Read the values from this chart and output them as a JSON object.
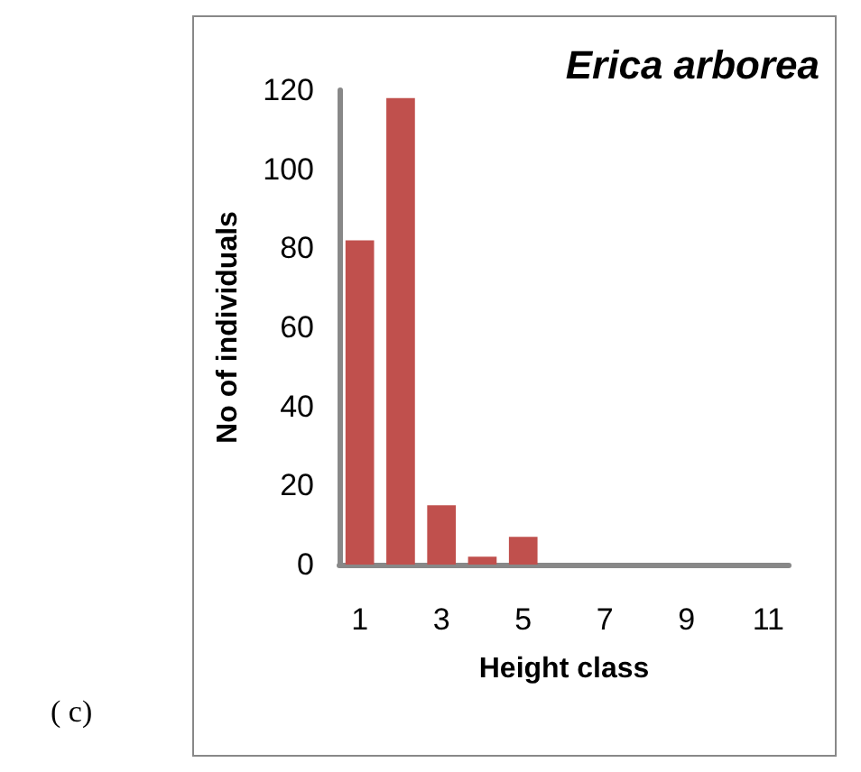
{
  "chart_data": {
    "type": "bar",
    "title": "Erica arborea",
    "xlabel": "Height class",
    "ylabel": "No of individuals",
    "categories": [
      "1",
      null,
      "3",
      null,
      "5",
      null,
      "7",
      null,
      "9",
      null,
      "11"
    ],
    "values": [
      82,
      118,
      15,
      2,
      7,
      0,
      0,
      0,
      0,
      0,
      0
    ],
    "color": "#c0504d",
    "ylim": [
      0,
      120
    ],
    "yticks": [
      0,
      20,
      40,
      60,
      80,
      100,
      120
    ],
    "grid": false,
    "annotations": [
      "( c)"
    ]
  }
}
